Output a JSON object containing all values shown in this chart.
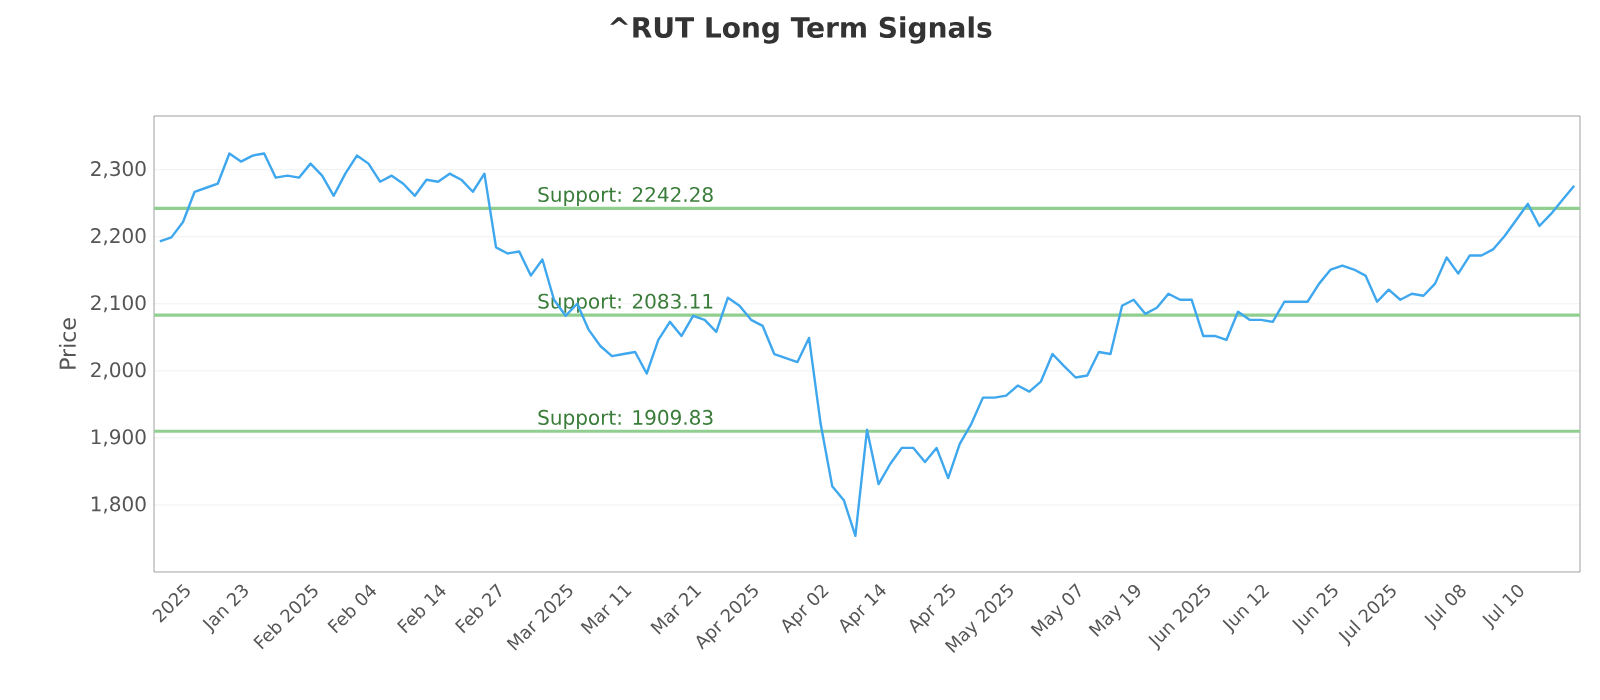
{
  "chart_data": {
    "type": "line",
    "title": "^RUT Long Term Signals",
    "ylabel": "Price",
    "categories": [
      null,
      null,
      "2025",
      null,
      null,
      null,
      null,
      "Jan 23",
      null,
      null,
      null,
      null,
      null,
      "Feb 2025",
      null,
      null,
      null,
      null,
      "Feb 04",
      null,
      null,
      null,
      null,
      null,
      "Feb 14",
      null,
      null,
      null,
      null,
      "Feb 27",
      null,
      null,
      null,
      null,
      null,
      "Mar 2025",
      null,
      null,
      null,
      null,
      "Mar 11",
      null,
      null,
      null,
      null,
      null,
      "Mar 21",
      null,
      null,
      null,
      null,
      "Apr 2025",
      null,
      null,
      null,
      null,
      null,
      "Apr 02",
      null,
      null,
      null,
      null,
      "Apr 14",
      null,
      null,
      null,
      null,
      null,
      "Apr 25",
      null,
      null,
      null,
      null,
      "May 2025",
      null,
      null,
      null,
      null,
      null,
      "May 07",
      null,
      null,
      null,
      null,
      "May 19",
      null,
      null,
      null,
      null,
      null,
      "Jun 2025",
      null,
      null,
      null,
      null,
      "Jun 12",
      null,
      null,
      null,
      null,
      null,
      "Jun 25",
      null,
      null,
      null,
      null,
      "Jul 2025",
      null,
      null,
      null,
      null,
      null,
      "Jul 08",
      null,
      null,
      null,
      null,
      "Jul 10",
      null,
      null,
      null,
      null,
      null
    ],
    "series": [
      {
        "color": "#3fa7ee",
        "values": [
          2193,
          2199,
          2222,
          2267,
          2273,
          2279,
          2324,
          2312,
          2321,
          2324,
          2288,
          2291,
          2288,
          2309,
          2291,
          2261,
          2294,
          2321,
          2309,
          2282,
          2291,
          2279,
          2261,
          2285,
          2282,
          2294,
          2285,
          2267,
          2294,
          2184,
          2175,
          2178,
          2142,
          2166,
          2106,
          2082,
          2100,
          2061,
          2037,
          2022,
          2025,
          2028,
          1996,
          2046,
          2073,
          2052,
          2082,
          2076,
          2058,
          2109,
          2097,
          2076,
          2067,
          2025,
          2019,
          2013,
          2049,
          1921,
          1828,
          1807,
          1754,
          1912,
          1831,
          1861,
          1885,
          1885,
          1864,
          1885,
          1840,
          1891,
          1921,
          1960,
          1960,
          1963,
          1978,
          1969,
          1984,
          2025,
          2007,
          1990,
          1993,
          2028,
          2025,
          2097,
          2106,
          2085,
          2094,
          2115,
          2106,
          2106,
          2052,
          2052,
          2046,
          2088,
          2076,
          2076,
          2073,
          2103,
          2103,
          2103,
          2130,
          2151,
          2157,
          2151,
          2142,
          2103,
          2121,
          2106,
          2115,
          2112,
          2130,
          2169,
          2145,
          2172,
          2172,
          2181,
          2201,
          2225,
          2249,
          2216,
          2234,
          2255,
          2276
        ]
      }
    ],
    "ylim": [
      1700,
      2380
    ],
    "yticks": [
      {
        "value": 1800,
        "label": "1,800"
      },
      {
        "value": 1900,
        "label": "1,900"
      },
      {
        "value": 2000,
        "label": "2,000"
      },
      {
        "value": 2100,
        "label": "2,100"
      },
      {
        "value": 2200,
        "label": "2,200"
      },
      {
        "value": 2300,
        "label": "2,300"
      }
    ],
    "grid": "y",
    "marker": "none",
    "line_style": "solid",
    "ref_lines": [
      {
        "axis": "y",
        "value": 2242.28,
        "label": "Support: 2242.28",
        "color": "#90cf90"
      },
      {
        "axis": "y",
        "value": 2083.11,
        "label": "Support: 2083.11",
        "color": "#90cf90"
      },
      {
        "axis": "y",
        "value": 1909.83,
        "label": "Support: 1909.83",
        "color": "#90cf90"
      }
    ]
  }
}
